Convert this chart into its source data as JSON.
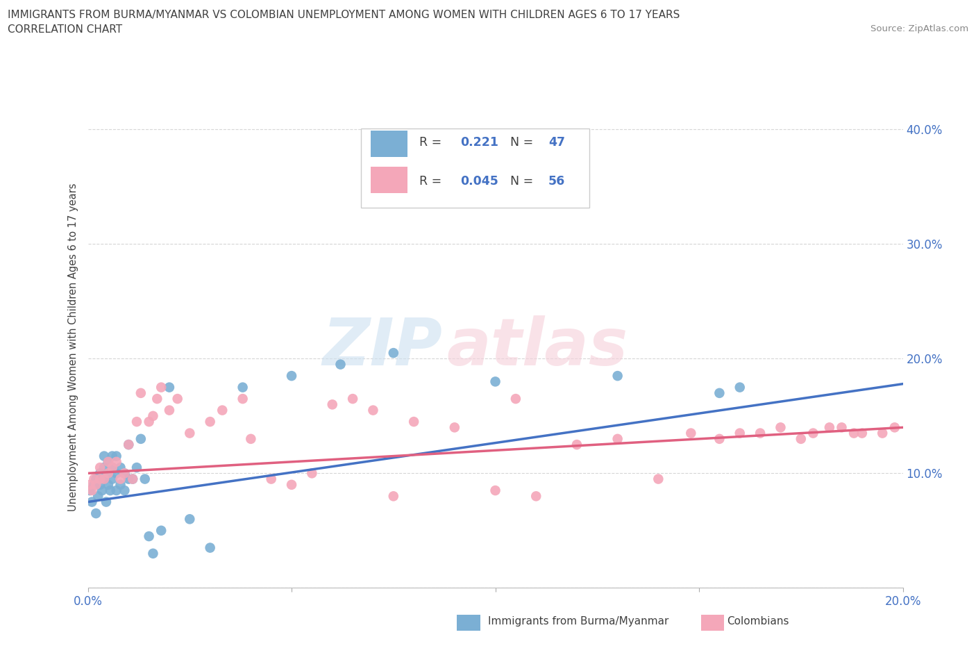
{
  "title_line1": "IMMIGRANTS FROM BURMA/MYANMAR VS COLOMBIAN UNEMPLOYMENT AMONG WOMEN WITH CHILDREN AGES 6 TO 17 YEARS",
  "title_line2": "CORRELATION CHART",
  "source_text": "Source: ZipAtlas.com",
  "ylabel": "Unemployment Among Women with Children Ages 6 to 17 years",
  "xlim": [
    0.0,
    0.2
  ],
  "ylim": [
    0.0,
    0.42
  ],
  "x_ticks": [
    0.0,
    0.05,
    0.1,
    0.15,
    0.2
  ],
  "y_ticks": [
    0.0,
    0.1,
    0.2,
    0.3,
    0.4
  ],
  "blue_color": "#7bafd4",
  "pink_color": "#f4a7b9",
  "blue_line_color": "#4472c4",
  "pink_line_color": "#e06080",
  "axis_color": "#4472c4",
  "grid_color": "#cccccc",
  "background_color": "#ffffff",
  "blue_scatter_x": [
    0.0005,
    0.001,
    0.0015,
    0.002,
    0.002,
    0.0025,
    0.003,
    0.003,
    0.0035,
    0.004,
    0.004,
    0.004,
    0.0045,
    0.005,
    0.005,
    0.005,
    0.0055,
    0.006,
    0.006,
    0.006,
    0.007,
    0.007,
    0.007,
    0.008,
    0.008,
    0.009,
    0.009,
    0.01,
    0.01,
    0.011,
    0.012,
    0.013,
    0.014,
    0.015,
    0.016,
    0.018,
    0.02,
    0.025,
    0.03,
    0.038,
    0.05,
    0.062,
    0.075,
    0.1,
    0.13,
    0.155,
    0.16
  ],
  "blue_scatter_y": [
    0.085,
    0.075,
    0.09,
    0.065,
    0.095,
    0.08,
    0.09,
    0.1,
    0.085,
    0.095,
    0.105,
    0.115,
    0.075,
    0.09,
    0.1,
    0.11,
    0.085,
    0.095,
    0.105,
    0.115,
    0.085,
    0.1,
    0.115,
    0.09,
    0.105,
    0.085,
    0.1,
    0.095,
    0.125,
    0.095,
    0.105,
    0.13,
    0.095,
    0.045,
    0.03,
    0.05,
    0.175,
    0.06,
    0.035,
    0.175,
    0.185,
    0.195,
    0.205,
    0.18,
    0.185,
    0.17,
    0.175
  ],
  "pink_scatter_x": [
    0.0005,
    0.001,
    0.0015,
    0.002,
    0.003,
    0.003,
    0.004,
    0.005,
    0.005,
    0.006,
    0.007,
    0.008,
    0.009,
    0.01,
    0.011,
    0.012,
    0.013,
    0.015,
    0.016,
    0.017,
    0.018,
    0.02,
    0.022,
    0.025,
    0.03,
    0.033,
    0.038,
    0.04,
    0.045,
    0.05,
    0.055,
    0.06,
    0.065,
    0.07,
    0.075,
    0.08,
    0.09,
    0.1,
    0.105,
    0.11,
    0.12,
    0.13,
    0.14,
    0.148,
    0.155,
    0.16,
    0.165,
    0.17,
    0.175,
    0.178,
    0.182,
    0.185,
    0.188,
    0.19,
    0.195,
    0.198
  ],
  "pink_scatter_y": [
    0.09,
    0.085,
    0.095,
    0.09,
    0.095,
    0.105,
    0.095,
    0.1,
    0.11,
    0.105,
    0.11,
    0.095,
    0.1,
    0.125,
    0.095,
    0.145,
    0.17,
    0.145,
    0.15,
    0.165,
    0.175,
    0.155,
    0.165,
    0.135,
    0.145,
    0.155,
    0.165,
    0.13,
    0.095,
    0.09,
    0.1,
    0.16,
    0.165,
    0.155,
    0.08,
    0.145,
    0.14,
    0.085,
    0.165,
    0.08,
    0.125,
    0.13,
    0.095,
    0.135,
    0.13,
    0.135,
    0.135,
    0.14,
    0.13,
    0.135,
    0.14,
    0.14,
    0.135,
    0.135,
    0.135,
    0.14
  ],
  "blue_trend_y_start": 0.075,
  "blue_trend_y_end": 0.178,
  "pink_trend_y_start": 0.1,
  "pink_trend_y_end": 0.14
}
